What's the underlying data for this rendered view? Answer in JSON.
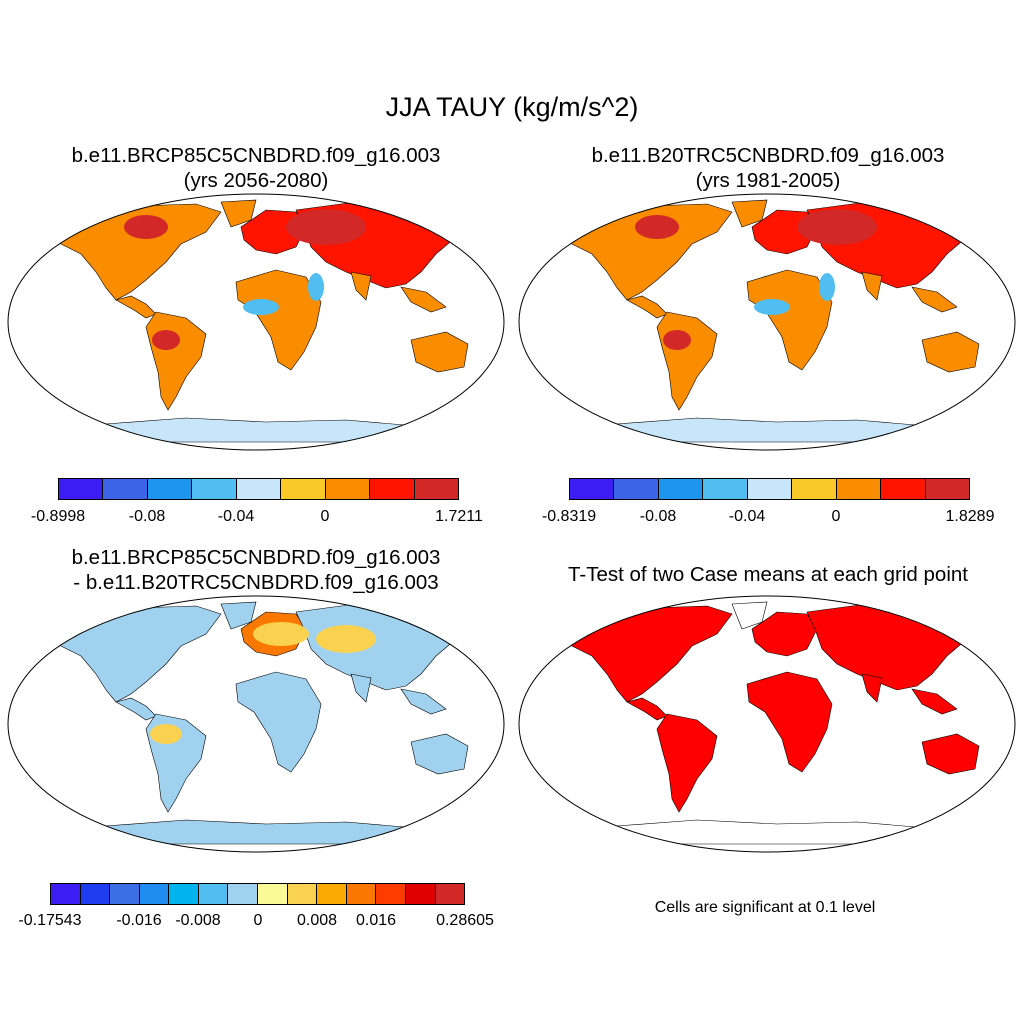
{
  "title": "JJA TAUY (kg/m/s^2)",
  "panels": [
    {
      "line1": "b.e11.BRCP85C5CNBDRD.f09_g16.003",
      "line2": "(yrs 2056-2080)"
    },
    {
      "line1": "b.e11.B20TRC5CNBDRD.f09_g16.003",
      "line2": "(yrs 1981-2005)"
    },
    {
      "line1": "b.e11.BRCP85C5CNBDRD.f09_g16.003",
      "line2": "- b.e11.B20TRC5CNBDRD.f09_g16.003"
    },
    {
      "line1": "T-Test of two Case means at each grid point",
      "line2": ""
    }
  ],
  "colorbars": [
    {
      "labels": [
        "-0.8998",
        "-0.08",
        "-0.04",
        "0",
        "1.7211"
      ],
      "colors": [
        "#3c1ef5",
        "#3c64e6",
        "#1e96f0",
        "#50bef0",
        "#c8e6fa",
        "#fac828",
        "#fa8c00",
        "#ff1400",
        "#d22828"
      ]
    },
    {
      "labels": [
        "-0.8319",
        "-0.08",
        "-0.04",
        "0",
        "1.8289"
      ],
      "colors": [
        "#3c1ef5",
        "#3c64e6",
        "#1e96f0",
        "#50bef0",
        "#c8e6fa",
        "#fac828",
        "#fa8c00",
        "#ff1400",
        "#d22828"
      ]
    },
    {
      "labels": [
        "-0.17543",
        "-0.016",
        "-0.008",
        "0",
        "0.008",
        "0.016",
        "0.28605"
      ],
      "colors": [
        "#3c1ef5",
        "#1e3cf0",
        "#3c6ee6",
        "#1e8cf0",
        "#00b4f0",
        "#50bef0",
        "#a0d2f0",
        "#fafa96",
        "#fad250",
        "#faaa00",
        "#fa7800",
        "#ff3c00",
        "#e10000",
        "#d22828"
      ]
    }
  ],
  "significance_note": "Cells are significant at 0.1 level",
  "map_colors": {
    "land_warm": "#fa8c00",
    "land_hot": "#ff1400",
    "land_cool": "#c8e6fa",
    "significant": "#ff0000"
  }
}
